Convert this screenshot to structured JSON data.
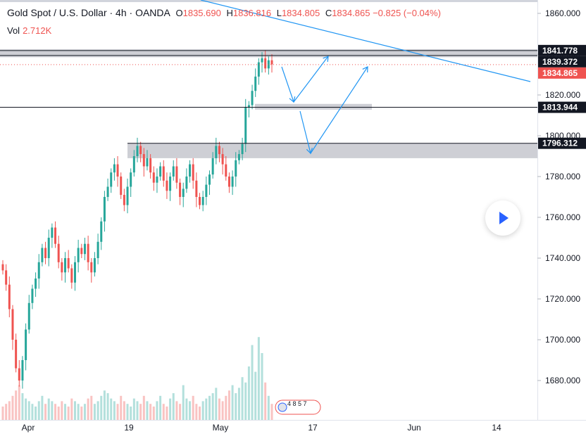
{
  "header": {
    "symbol": "Gold Spot / U.S. Dollar · 4h · OANDA",
    "open_key": "O",
    "open": "1835.690",
    "high_key": "H",
    "high": "1836.816",
    "low_key": "L",
    "low": "1834.805",
    "close_key": "C",
    "close": "1834.865",
    "change": "−0.825 (−0.04%)",
    "volume_label": "Vol",
    "volume": "2.712K"
  },
  "colors": {
    "up": "#26a69a",
    "down": "#ef5350",
    "text": "#131722",
    "zone": "#c9cad0",
    "trend": "#2196f3",
    "badge_dark": "#131722",
    "badge_price": "#ef5350"
  },
  "chart_data": {
    "type": "candlestick",
    "symbol": "Gold Spot / U.S. Dollar",
    "interval": "4h",
    "y_axis": {
      "ticks": [
        1680,
        1700,
        1720,
        1740,
        1760,
        1780,
        1800,
        1820,
        1840,
        1860
      ],
      "tick_labels": [
        "1680.000",
        "1700.000",
        "1720.000",
        "1740.000",
        "1760.000",
        "1780.000",
        "1800.000",
        "1820.000",
        "1840.000",
        "1860.000"
      ]
    },
    "x_axis": {
      "tick_labels": [
        "Apr",
        "19",
        "May",
        "17",
        "Jun",
        "14"
      ]
    },
    "price_lines": [
      {
        "label": "1841.778",
        "value": 1841.778,
        "style": "dark"
      },
      {
        "label": "1839.372",
        "value": 1839.372,
        "style": "dark"
      },
      {
        "label": "1834.865",
        "value": 1834.865,
        "style": "price"
      },
      {
        "label": "1813.944",
        "value": 1813.944,
        "style": "dark"
      },
      {
        "label": "1796.312",
        "value": 1796.312,
        "style": "dark"
      }
    ],
    "zones": [
      {
        "from": 1838.5,
        "to": 1842.4
      },
      {
        "from": 1812.8,
        "to": 1815.6
      },
      {
        "from": 1789.0,
        "to": 1796.3
      }
    ],
    "close_path": [
      1734,
      1727,
      1715,
      1700,
      1686,
      1680,
      1690,
      1705,
      1718,
      1725,
      1730,
      1738,
      1745,
      1740,
      1750,
      1755,
      1747,
      1738,
      1733,
      1740,
      1735,
      1728,
      1738,
      1745,
      1742,
      1747,
      1738,
      1733,
      1740,
      1748,
      1758,
      1770,
      1775,
      1782,
      1786,
      1780,
      1771,
      1766,
      1775,
      1782,
      1790,
      1795,
      1791,
      1785,
      1789,
      1782,
      1777,
      1780,
      1785,
      1778,
      1773,
      1780,
      1785,
      1777,
      1770,
      1774,
      1780,
      1786,
      1778,
      1770,
      1766,
      1770,
      1776,
      1781,
      1789,
      1795,
      1791,
      1786,
      1780,
      1775,
      1780,
      1788,
      1791,
      1796,
      1814,
      1815,
      1822,
      1829,
      1836,
      1838,
      1833,
      1837,
      1835
    ],
    "volume_path": [
      0.5,
      0.6,
      0.7,
      0.9,
      1.1,
      1.3,
      1.0,
      0.8,
      0.7,
      0.6,
      0.5,
      0.7,
      0.9,
      0.6,
      0.8,
      0.7,
      0.6,
      0.5,
      0.7,
      0.6,
      0.5,
      0.8,
      0.7,
      0.6,
      0.5,
      0.6,
      0.8,
      0.9,
      0.6,
      0.7,
      0.9,
      1.1,
      1.0,
      0.8,
      0.7,
      0.6,
      0.9,
      0.7,
      0.6,
      0.5,
      0.8,
      0.7,
      0.6,
      0.9,
      0.7,
      0.6,
      0.5,
      0.7,
      0.9,
      0.6,
      0.5,
      0.8,
      1.0,
      0.7,
      0.6,
      1.3,
      0.8,
      0.7,
      0.9,
      0.6,
      0.5,
      0.7,
      0.8,
      0.9,
      1.0,
      1.2,
      0.8,
      0.7,
      0.9,
      1.1,
      1.3,
      1.0,
      1.2,
      1.6,
      1.4,
      2.0,
      2.8,
      1.8,
      3.1,
      2.5,
      1.4,
      0.9,
      0.6
    ],
    "event_marker": "4 8 5 7"
  }
}
